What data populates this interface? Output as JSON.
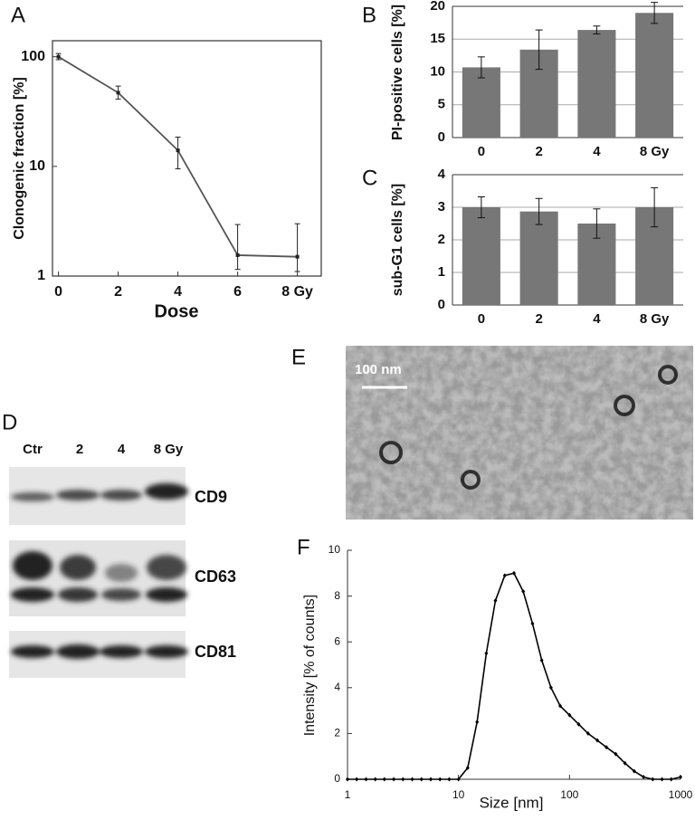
{
  "chart_data": [
    {
      "type": "line",
      "panel": "A",
      "y_label": "Clonogenic fraction [%]",
      "x_label": "Dose",
      "x": [
        0,
        2,
        4,
        6,
        8
      ],
      "values": [
        100,
        47,
        14,
        1.55,
        1.5
      ],
      "error_low": [
        6,
        6,
        4.5,
        0.4,
        0.4
      ],
      "error_high": [
        7,
        7,
        4.5,
        1.4,
        1.5
      ],
      "color": "#555555",
      "ylog": true,
      "xlim": [
        -0.2,
        8.8
      ],
      "ylim": [
        1,
        140
      ],
      "xticks": [
        0,
        2,
        4,
        6,
        {
          "value": 8,
          "label": "8 Gy"
        }
      ],
      "yticks": [
        1,
        10,
        100
      ],
      "grid": false
    },
    {
      "type": "bar",
      "panel": "B",
      "y_label": "PI-positive cells [%]",
      "categories": [
        "0",
        "2",
        "4",
        "8 Gy"
      ],
      "values": [
        10.7,
        13.4,
        16.4,
        19.0
      ],
      "errors": [
        1.6,
        3.0,
        0.6,
        1.6
      ],
      "color": "#777777",
      "ylim": [
        0,
        20
      ],
      "yticks": [
        0,
        5,
        10,
        15,
        20
      ],
      "grid": true
    },
    {
      "type": "bar",
      "panel": "C",
      "y_label": "sub-G1 cells [%]",
      "categories": [
        "0",
        "2",
        "4",
        "8 Gy"
      ],
      "values": [
        3.0,
        2.87,
        2.5,
        3.0
      ],
      "errors": [
        0.32,
        0.4,
        0.45,
        0.6
      ],
      "color": "#777777",
      "ylim": [
        0,
        4
      ],
      "yticks": [
        0,
        1,
        2,
        3,
        4
      ],
      "grid": true
    },
    {
      "type": "line",
      "panel": "F",
      "y_label": "Intensity [% of counts]",
      "x_label": "Size [nm]",
      "x": [
        1,
        1.21,
        1.47,
        1.78,
        2.15,
        2.61,
        3.16,
        3.83,
        4.64,
        5.62,
        6.81,
        8.25,
        10,
        12.1,
        14.7,
        17.8,
        21.5,
        26.1,
        31.6,
        38.3,
        46.4,
        56.2,
        68.1,
        82.5,
        100,
        121,
        147,
        178,
        215,
        261,
        316,
        383,
        464,
        562,
        681,
        825,
        1000
      ],
      "values": [
        0,
        0,
        0,
        0,
        0,
        0,
        0,
        0,
        0,
        0,
        0,
        0,
        0,
        0.5,
        2.5,
        5.5,
        7.8,
        8.9,
        9.0,
        8.2,
        6.8,
        5.2,
        4.0,
        3.2,
        2.8,
        2.4,
        2.0,
        1.7,
        1.4,
        1.1,
        0.7,
        0.35,
        0.1,
        0,
        0,
        0,
        0.1
      ],
      "color": "#000000",
      "xlog": true,
      "xlim": [
        1,
        1000
      ],
      "ylim": [
        0,
        10
      ],
      "xticks": [
        1,
        10,
        100,
        1000
      ],
      "yticks": [
        0,
        2,
        4,
        6,
        8,
        10
      ],
      "grid": false
    }
  ],
  "blot": {
    "panel": "D",
    "lanes": [
      "Ctr",
      "2",
      "4",
      "8 Gy"
    ],
    "markers": [
      "CD9",
      "CD63",
      "CD81"
    ]
  },
  "micrograph": {
    "panel": "E",
    "scale_bar": "100 nm"
  }
}
